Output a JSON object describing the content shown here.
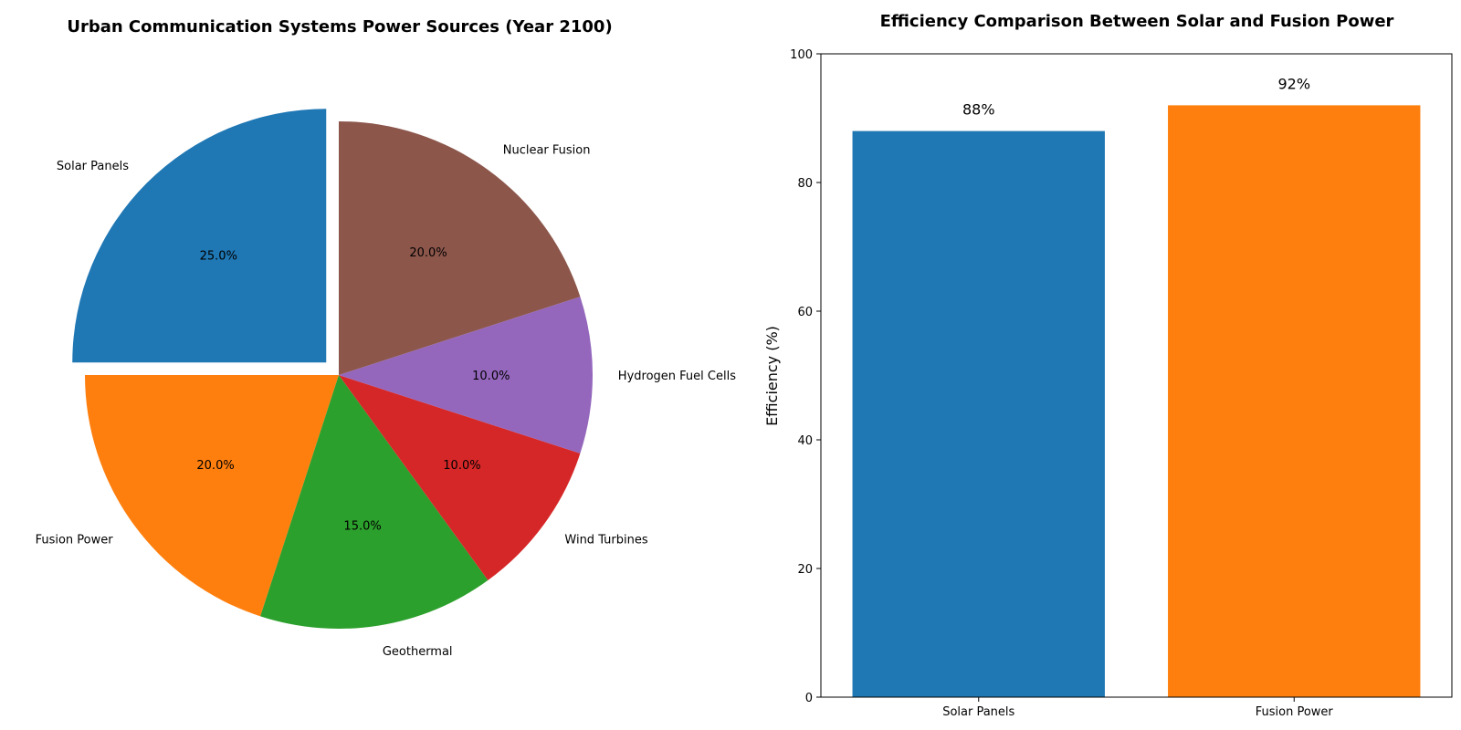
{
  "chart_data": [
    {
      "type": "pie",
      "title": "Urban Communication Systems Power Sources (Year 2100)",
      "slices": [
        {
          "label": "Solar Panels",
          "value": 25,
          "pct_label": "25.0%",
          "color": "#1f77b4",
          "exploded": true
        },
        {
          "label": "Fusion Power",
          "value": 20,
          "pct_label": "20.0%",
          "color": "#ff7f0e",
          "exploded": false
        },
        {
          "label": "Geothermal",
          "value": 15,
          "pct_label": "15.0%",
          "color": "#2ca02c",
          "exploded": false
        },
        {
          "label": "Wind Turbines",
          "value": 10,
          "pct_label": "10.0%",
          "color": "#d62728",
          "exploded": false
        },
        {
          "label": "Hydrogen Fuel Cells",
          "value": 10,
          "pct_label": "10.0%",
          "color": "#9467bd",
          "exploded": false
        },
        {
          "label": "Nuclear Fusion",
          "value": 20,
          "pct_label": "20.0%",
          "color": "#8c564b",
          "exploded": false
        }
      ]
    },
    {
      "type": "bar",
      "title": "Efficiency Comparison Between Solar and Fusion Power",
      "categories": [
        "Solar Panels",
        "Fusion Power"
      ],
      "values": [
        88,
        92
      ],
      "value_labels": [
        "88%",
        "92%"
      ],
      "colors": [
        "#1f77b4",
        "#ff7f0e"
      ],
      "xlabel": "",
      "ylabel": "Efficiency (%)",
      "ylim": [
        0,
        100
      ],
      "yticks": [
        0,
        20,
        40,
        60,
        80,
        100
      ],
      "grid": false
    }
  ]
}
